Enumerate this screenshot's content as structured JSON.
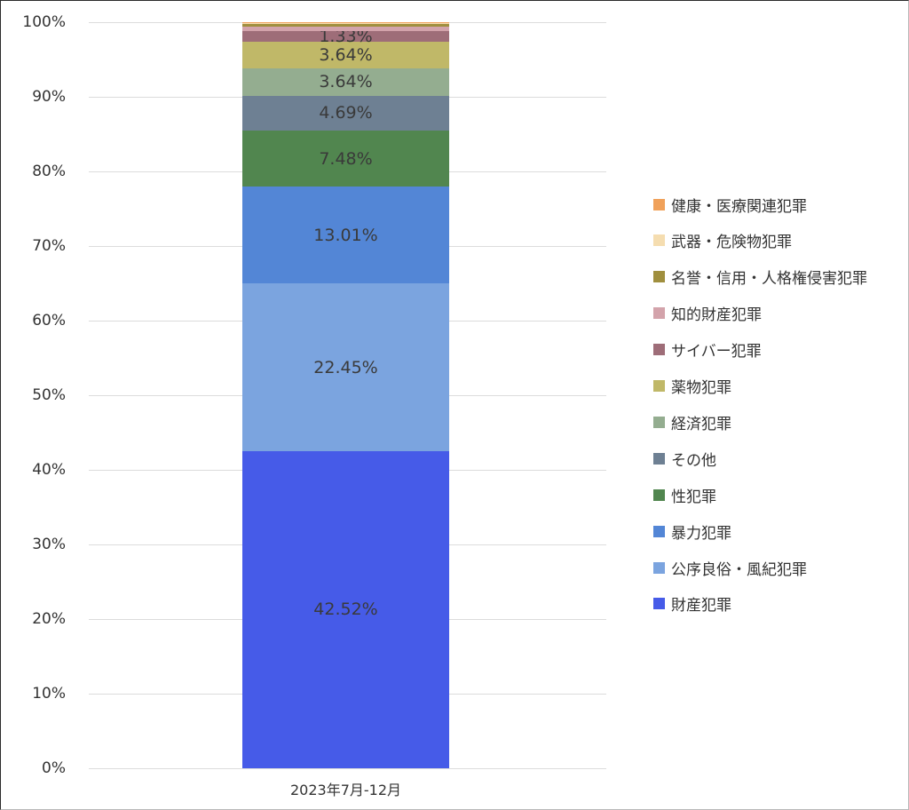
{
  "chart_data": {
    "type": "bar",
    "stacked": true,
    "normalized": true,
    "title": "",
    "xlabel": "",
    "ylabel": "",
    "ylim": [
      0,
      100
    ],
    "grid": true,
    "legend_position": "right",
    "categories": [
      "2023年7月-12月"
    ],
    "yticks": [
      "0%",
      "10%",
      "20%",
      "30%",
      "40%",
      "50%",
      "60%",
      "70%",
      "80%",
      "90%",
      "100%"
    ],
    "series": [
      {
        "name": "財産犯罪",
        "values": [
          42.52
        ],
        "color": "#465BE8",
        "label": "42.52%"
      },
      {
        "name": "公序良俗・風紀犯罪",
        "values": [
          22.45
        ],
        "color": "#7BA4DF",
        "label": "22.45%"
      },
      {
        "name": "暴力犯罪",
        "values": [
          13.01
        ],
        "color": "#5386D6",
        "label": "13.01%"
      },
      {
        "name": "性犯罪",
        "values": [
          7.48
        ],
        "color": "#51864F",
        "label": "7.48%"
      },
      {
        "name": "その他",
        "values": [
          4.69
        ],
        "color": "#6E8093",
        "label": "4.69%"
      },
      {
        "name": "経済犯罪",
        "values": [
          3.64
        ],
        "color": "#94AD90",
        "label": "3.64%"
      },
      {
        "name": "薬物犯罪",
        "values": [
          3.64
        ],
        "color": "#C0B868",
        "label": "3.64%"
      },
      {
        "name": "サイバー犯罪",
        "values": [
          1.33
        ],
        "color": "#9E6D78",
        "label": "1.33%"
      },
      {
        "name": "知的財産犯罪",
        "values": [
          0.6
        ],
        "color": "#D3A3AB",
        "label": ""
      },
      {
        "name": "名誉・信用・人格権侵害犯罪",
        "values": [
          0.4
        ],
        "color": "#A08F3E",
        "label": ""
      },
      {
        "name": "武器・危険物犯罪",
        "values": [
          0.15
        ],
        "color": "#F5DDB0",
        "label": ""
      },
      {
        "name": "健康・医療関連犯罪",
        "values": [
          0.09
        ],
        "color": "#F0A15A",
        "label": ""
      }
    ]
  },
  "legend": [
    {
      "label": "健康・医療関連犯罪",
      "color": "#F0A15A"
    },
    {
      "label": "武器・危険物犯罪",
      "color": "#F5DDB0"
    },
    {
      "label": "名誉・信用・人格権侵害犯罪",
      "color": "#A08F3E"
    },
    {
      "label": "知的財産犯罪",
      "color": "#D3A3AB"
    },
    {
      "label": "サイバー犯罪",
      "color": "#9E6D78"
    },
    {
      "label": "薬物犯罪",
      "color": "#C0B868"
    },
    {
      "label": "経済犯罪",
      "color": "#94AD90"
    },
    {
      "label": "その他",
      "color": "#6E8093"
    },
    {
      "label": "性犯罪",
      "color": "#51864F"
    },
    {
      "label": "暴力犯罪",
      "color": "#5386D6"
    },
    {
      "label": "公序良俗・風紀犯罪",
      "color": "#7BA4DF"
    },
    {
      "label": "財産犯罪",
      "color": "#465BE8"
    }
  ]
}
